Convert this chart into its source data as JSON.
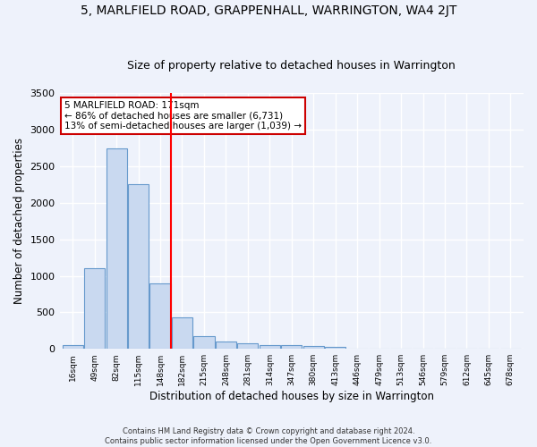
{
  "title": "5, MARLFIELD ROAD, GRAPPENHALL, WARRINGTON, WA4 2JT",
  "subtitle": "Size of property relative to detached houses in Warrington",
  "xlabel": "Distribution of detached houses by size in Warrington",
  "ylabel": "Number of detached properties",
  "categories": [
    "16sqm",
    "49sqm",
    "82sqm",
    "115sqm",
    "148sqm",
    "182sqm",
    "215sqm",
    "248sqm",
    "281sqm",
    "314sqm",
    "347sqm",
    "380sqm",
    "413sqm",
    "446sqm",
    "479sqm",
    "513sqm",
    "546sqm",
    "579sqm",
    "612sqm",
    "645sqm",
    "678sqm"
  ],
  "values": [
    50,
    1100,
    2750,
    2250,
    900,
    425,
    175,
    100,
    75,
    50,
    50,
    35,
    30,
    0,
    0,
    0,
    0,
    0,
    0,
    0,
    0
  ],
  "bar_color": "#c9d9f0",
  "bar_edge_color": "#6699cc",
  "red_line_index": 5,
  "ylim": [
    0,
    3500
  ],
  "yticks": [
    0,
    500,
    1000,
    1500,
    2000,
    2500,
    3000,
    3500
  ],
  "annotation_text": "5 MARLFIELD ROAD: 171sqm\n← 86% of detached houses are smaller (6,731)\n13% of semi-detached houses are larger (1,039) →",
  "annotation_box_color": "#ffffff",
  "annotation_box_edge_color": "#cc0000",
  "footnote": "Contains HM Land Registry data © Crown copyright and database right 2024.\nContains public sector information licensed under the Open Government Licence v3.0.",
  "background_color": "#eef2fb",
  "grid_color": "#ffffff",
  "title_fontsize": 10,
  "subtitle_fontsize": 9,
  "xlabel_fontsize": 8.5,
  "ylabel_fontsize": 8.5
}
